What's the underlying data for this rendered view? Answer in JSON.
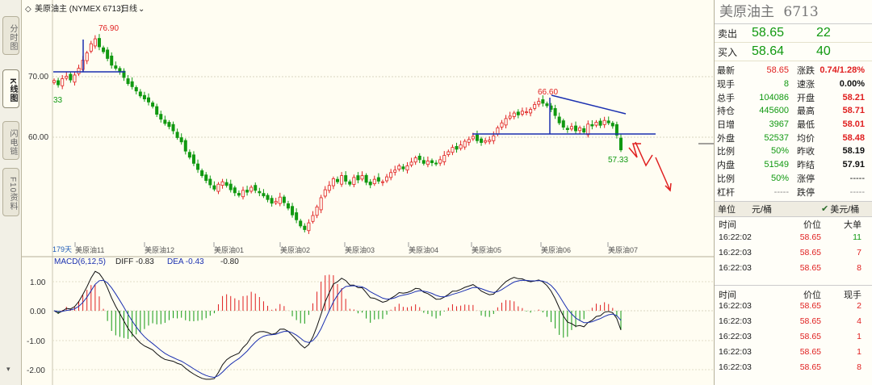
{
  "header": {
    "title": "美原油主 (NYMEX 6713)",
    "period": "日线"
  },
  "left_tabs": [
    "分时图",
    "K线图",
    "闪电链",
    "F10资料"
  ],
  "chart_data": {
    "type": "candlestick",
    "yticks": [
      "70.00",
      "60.00"
    ],
    "annotations": {
      "high": "76.90",
      "low_left": "33",
      "peak2": "66.60",
      "low_right": "57.33",
      "days": "179天"
    },
    "xticks": [
      "美原油11",
      "美原油12",
      "美原油01",
      "美原油02",
      "美原油03",
      "美原油04",
      "美原油05",
      "美原油06",
      "美原油07"
    ],
    "closes": [
      69.5,
      68.8,
      69.8,
      70.2,
      69.6,
      70.4,
      71.5,
      72.8,
      74.0,
      75.5,
      76.3,
      75.0,
      74.2,
      73.1,
      72.0,
      71.5,
      70.9,
      70.0,
      69.0,
      68.5,
      67.8,
      67.0,
      66.5,
      66.0,
      65.3,
      64.0,
      63.2,
      62.5,
      62.0,
      61.3,
      60.2,
      59.5,
      58.0,
      57.0,
      56.0,
      55.0,
      54.0,
      53.2,
      52.5,
      51.8,
      52.6,
      53.0,
      52.4,
      51.7,
      51.2,
      50.8,
      51.6,
      51.3,
      52.1,
      51.6,
      51.2,
      50.7,
      50.1,
      49.5,
      49.8,
      50.5,
      49.6,
      48.7,
      47.6,
      46.8,
      45.8,
      45.2,
      46.3,
      47.5,
      48.9,
      50.4,
      51.7,
      52.4,
      53.5,
      53.0,
      54.0,
      53.1,
      52.6,
      53.7,
      53.3,
      54.0,
      52.9,
      52.5,
      53.4,
      53.1,
      53.0,
      53.8,
      54.5,
      54.9,
      55.6,
      55.1,
      55.6,
      56.2,
      56.9,
      56.6,
      56.0,
      56.4,
      56.1,
      55.9,
      56.6,
      57.3,
      57.9,
      58.6,
      58.3,
      59.0,
      59.6,
      59.9,
      60.4,
      59.7,
      59.4,
      59.7,
      59.8,
      60.5,
      61.8,
      62.6,
      63.3,
      63.7,
      64.2,
      63.9,
      64.5,
      64.4,
      64.8,
      65.6,
      66.1,
      65.8,
      65.4,
      64.8,
      63.8,
      62.6,
      61.9,
      61.5,
      62.0,
      61.3,
      61.8,
      61.1,
      62.4,
      62.1,
      62.7,
      62.2,
      63.0,
      62.6,
      62.1,
      60.6,
      58.2
    ],
    "macd_labels": [
      "1.00",
      "0.00",
      "-1.00",
      "-2.00"
    ]
  },
  "macd": {
    "title": "MACD(6,12,5)",
    "diff_label": "DIFF -0.83",
    "dea_label": "DEA -0.43",
    "macd_label": "-0.80"
  },
  "colors": {
    "up": "#e02020",
    "down": "#119911",
    "line": "#1a2fb0"
  },
  "quote": {
    "name": "美原油主",
    "code": "6713",
    "sell": {
      "label": "卖出",
      "price": "58.65",
      "vol": "22"
    },
    "buy": {
      "label": "买入",
      "price": "58.64",
      "vol": "40"
    },
    "rows": [
      [
        "最新",
        "58.65",
        "涨跌",
        "0.74/1.28%"
      ],
      [
        "现手",
        "8",
        "速涨",
        "0.00%"
      ],
      [
        "总手",
        "104086",
        "开盘",
        "58.21"
      ],
      [
        "持仓",
        "445600",
        "最高",
        "58.71"
      ],
      [
        "日增",
        "3967",
        "最低",
        "58.01"
      ],
      [
        "外盘",
        "52537",
        "均价",
        "58.48"
      ],
      [
        "比例",
        "50%",
        "昨收",
        "58.19"
      ],
      [
        "内盘",
        "51549",
        "昨结",
        "57.91"
      ],
      [
        "比例",
        "50%",
        "涨停",
        "-----"
      ],
      [
        "杠杆",
        "-----",
        "跌停",
        "-----"
      ]
    ],
    "unit": {
      "label": "单位",
      "value": "元/桶",
      "checked": "美元/桶"
    },
    "trades1_head": [
      "时间",
      "价位",
      "大单"
    ],
    "trades1": [
      [
        "16:22:02",
        "58.65",
        "11"
      ],
      [
        "16:22:03",
        "58.65",
        "7"
      ],
      [
        "16:22:03",
        "58.65",
        "8"
      ]
    ],
    "trades2_head": [
      "时间",
      "价位",
      "现手"
    ],
    "trades2": [
      [
        "16:22:03",
        "58.65",
        "2"
      ],
      [
        "16:22:03",
        "58.65",
        "4"
      ],
      [
        "16:22:03",
        "58.65",
        "1"
      ],
      [
        "16:22:03",
        "58.65",
        "1"
      ],
      [
        "16:22:03",
        "58.65",
        "8"
      ]
    ]
  }
}
